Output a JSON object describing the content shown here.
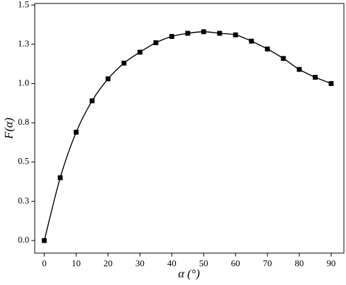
{
  "chart_data": {
    "type": "line",
    "x_label": "α (°)",
    "y_label": "F(α)",
    "x": [
      0,
      5,
      10,
      15,
      20,
      25,
      30,
      35,
      40,
      45,
      50,
      55,
      60,
      65,
      70,
      75,
      80,
      85,
      90
    ],
    "series": [
      {
        "color": "#000000",
        "values": [
          0,
          0.4,
          0.69,
          0.89,
          1.03,
          1.13,
          1.2,
          1.26,
          1.3,
          1.32,
          1.33,
          1.32,
          1.31,
          1.27,
          1.22,
          1.16,
          1.09,
          1.04,
          1.0
        ]
      }
    ],
    "xlim": [
      -3,
      94
    ],
    "ylim": [
      -0.08,
      1.51
    ],
    "xticks": [
      0,
      10,
      20,
      30,
      40,
      50,
      60,
      70,
      80,
      90
    ],
    "yticks": [
      {
        "value": 0,
        "label": "0.0"
      },
      {
        "value": 0.25,
        "label": "0.3"
      },
      0.5,
      {
        "value": 0.75,
        "label": "0.8"
      },
      {
        "value": 1,
        "label": "1.0"
      },
      {
        "value": 1.25,
        "label": "1.3"
      },
      1.5
    ],
    "grid": false
  }
}
